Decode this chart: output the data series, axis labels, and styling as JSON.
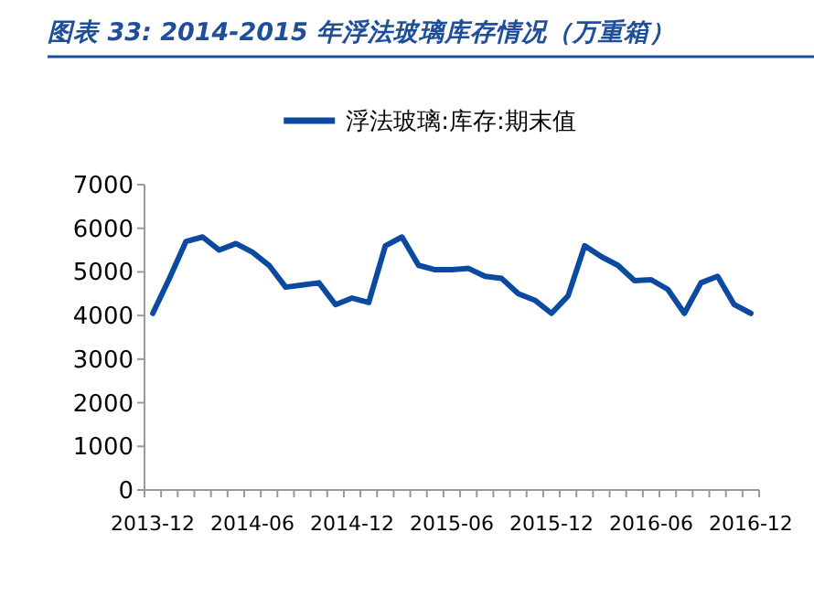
{
  "chart_data": {
    "type": "line",
    "title": "图表 33:  2014-2015 年浮法玻璃库存情况（万重箱）",
    "categories": [
      "2013-12",
      null,
      null,
      null,
      null,
      null,
      "2014-06",
      null,
      null,
      null,
      null,
      null,
      "2014-12",
      null,
      null,
      null,
      null,
      null,
      "2015-06",
      null,
      null,
      null,
      null,
      null,
      "2015-12",
      null,
      null,
      null,
      null,
      null,
      "2016-06",
      null,
      null,
      null,
      null,
      null,
      "2016-12"
    ],
    "series": [
      {
        "name": "浮法玻璃:库存:期末值",
        "color": "#0b4a9e",
        "values": [
          4050,
          4850,
          5700,
          5800,
          5500,
          5650,
          5450,
          5150,
          4650,
          4700,
          4750,
          4250,
          4400,
          4300,
          5600,
          5800,
          5150,
          5050,
          5050,
          5080,
          4900,
          4850,
          4500,
          4350,
          4050,
          4450,
          5600,
          5350,
          5150,
          4800,
          4820,
          4600,
          4050,
          4750,
          4900,
          4250,
          4050
        ]
      }
    ],
    "ylim": [
      0,
      7000
    ],
    "yticks": [
      0,
      1000,
      2000,
      3000,
      4000,
      5000,
      6000,
      7000
    ],
    "grid": false,
    "legend": "top",
    "marker": "none",
    "line_style": "solid"
  }
}
